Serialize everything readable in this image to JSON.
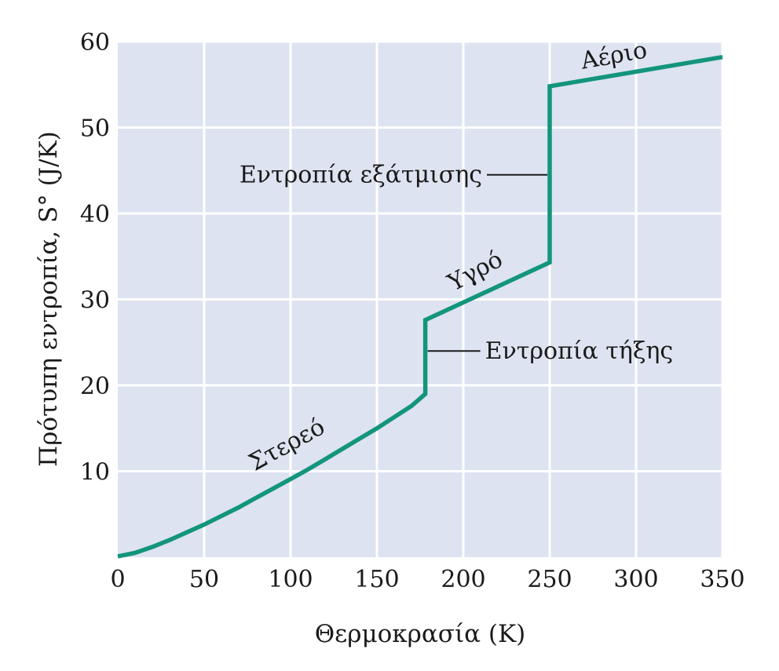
{
  "chart_data": {
    "type": "line",
    "xlabel": "Θερμοκρασία (K)",
    "ylabel": "Πρότυπη εντροπία, S° (J/K)",
    "xlim": [
      0,
      350
    ],
    "ylim": [
      0,
      60
    ],
    "xticks": [
      0,
      50,
      100,
      150,
      200,
      250,
      300,
      350
    ],
    "yticks": [
      10,
      20,
      30,
      40,
      50,
      60
    ],
    "xtick_labels": [
      "0",
      "50",
      "100",
      "150",
      "200",
      "250",
      "300",
      "350"
    ],
    "ytick_labels": [
      "10",
      "20",
      "30",
      "40",
      "50",
      "60"
    ],
    "grid": true,
    "colors": {
      "line": "#12957c",
      "plot_bg": "#dde3f0",
      "grid": "#ffffff",
      "annotation_line": "#1a1a1a"
    },
    "series": [
      {
        "points": [
          [
            0,
            0.1
          ],
          [
            10,
            0.5
          ],
          [
            20,
            1.2
          ],
          [
            30,
            2.0
          ],
          [
            40,
            2.9
          ],
          [
            50,
            3.8
          ],
          [
            60,
            4.8
          ],
          [
            70,
            5.8
          ],
          [
            80,
            6.9
          ],
          [
            90,
            8.0
          ],
          [
            100,
            9.1
          ],
          [
            110,
            10.2
          ],
          [
            120,
            11.4
          ],
          [
            130,
            12.6
          ],
          [
            140,
            13.8
          ],
          [
            150,
            15.0
          ],
          [
            160,
            16.3
          ],
          [
            170,
            17.6
          ],
          [
            178,
            19.0
          ],
          [
            178,
            27.6
          ],
          [
            250,
            34.3
          ],
          [
            250,
            54.8
          ],
          [
            350,
            58.2
          ]
        ]
      }
    ],
    "annotations": [
      {
        "text": "Στερεό",
        "x": 100,
        "y": 12.3,
        "rotate": -29
      },
      {
        "text": "Υγρό",
        "x": 209,
        "y": 32.5,
        "rotate": -28
      },
      {
        "text": "Αέριο",
        "x": 288,
        "y": 57.5,
        "rotate": -10
      },
      {
        "text": "Εντροπία εξάτμισης",
        "x": 250,
        "y": 44.5,
        "side": "left"
      },
      {
        "text": "Εντροπία τήξης",
        "x": 178,
        "y": 24.0,
        "side": "right"
      }
    ]
  }
}
